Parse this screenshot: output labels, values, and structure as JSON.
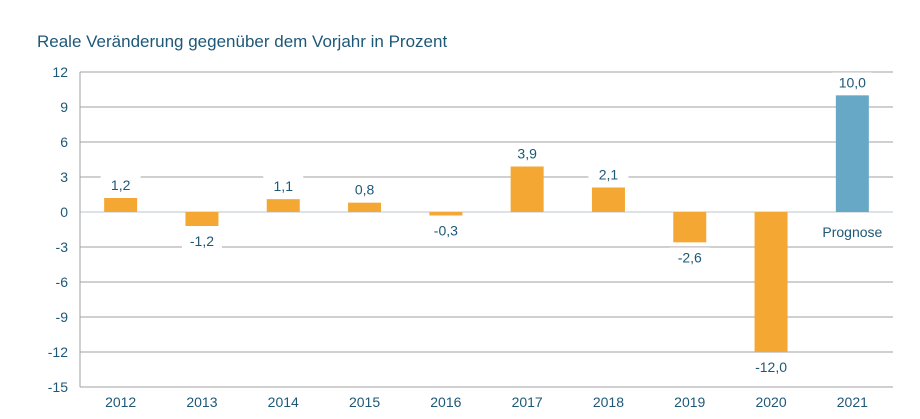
{
  "chart_data": {
    "type": "bar",
    "title": "Reale Veränderung gegenüber dem Vorjahr in Prozent",
    "categories": [
      "2012",
      "2013",
      "2014",
      "2015",
      "2016",
      "2017",
      "2018",
      "2019",
      "2020",
      "2021"
    ],
    "values": [
      1.2,
      -1.2,
      1.1,
      0.8,
      -0.3,
      3.9,
      2.1,
      -2.6,
      -12.0,
      10.0
    ],
    "data_labels": [
      "1,2",
      "-1,2",
      "1,1",
      "0,8",
      "-0,3",
      "3,9",
      "2,1",
      "-2,6",
      "-12,0",
      "10,0"
    ],
    "annotations": [
      {
        "category": "2021",
        "text": "Prognose"
      }
    ],
    "ylim": [
      -15,
      12
    ],
    "yticks": [
      12,
      9,
      6,
      3,
      0,
      -3,
      -6,
      -9,
      -12,
      -15
    ],
    "grid": true,
    "colors": {
      "actual": "#f5a733",
      "forecast": "#66a8c6",
      "text": "#1d5878",
      "grid": "#a0a0a0"
    },
    "forecast_categories": [
      "2021"
    ]
  }
}
